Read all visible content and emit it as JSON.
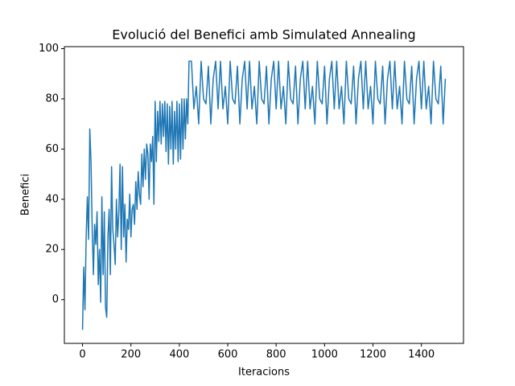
{
  "chart_data": {
    "type": "line",
    "title": "Evolució del Benefici amb Simulated Annealing",
    "x_label": "Iteracions",
    "y_label": "Benefici",
    "color": "#1f77b4",
    "xlim": [
      -75,
      1574
    ],
    "ylim": [
      -17.4,
      100.8
    ],
    "xticks": [
      0,
      200,
      400,
      600,
      800,
      1000,
      1200,
      1400
    ],
    "yticks": [
      0,
      20,
      40,
      60,
      80,
      100
    ],
    "x": [
      0,
      5,
      10,
      15,
      20,
      25,
      30,
      35,
      40,
      45,
      50,
      55,
      60,
      65,
      70,
      75,
      80,
      85,
      90,
      95,
      100,
      105,
      110,
      115,
      120,
      125,
      130,
      135,
      140,
      145,
      150,
      155,
      160,
      165,
      170,
      175,
      180,
      185,
      190,
      195,
      200,
      205,
      210,
      215,
      220,
      225,
      230,
      235,
      240,
      245,
      250,
      255,
      260,
      265,
      270,
      275,
      280,
      285,
      290,
      295,
      300,
      305,
      310,
      315,
      320,
      325,
      330,
      335,
      340,
      345,
      350,
      355,
      360,
      365,
      370,
      375,
      380,
      385,
      390,
      395,
      400,
      405,
      410,
      415,
      420,
      425,
      430,
      435,
      440,
      450,
      460,
      470,
      480,
      490,
      500,
      510,
      520,
      530,
      540,
      550,
      560,
      570,
      580,
      590,
      600,
      610,
      620,
      630,
      640,
      650,
      660,
      670,
      680,
      690,
      700,
      710,
      720,
      730,
      740,
      750,
      760,
      770,
      780,
      790,
      800,
      810,
      820,
      830,
      840,
      850,
      860,
      870,
      880,
      890,
      900,
      910,
      920,
      930,
      940,
      950,
      960,
      970,
      980,
      990,
      1000,
      1010,
      1020,
      1030,
      1040,
      1050,
      1060,
      1070,
      1080,
      1090,
      1100,
      1110,
      1120,
      1130,
      1140,
      1150,
      1160,
      1170,
      1180,
      1190,
      1200,
      1210,
      1220,
      1230,
      1240,
      1250,
      1260,
      1270,
      1280,
      1290,
      1300,
      1310,
      1320,
      1330,
      1340,
      1350,
      1360,
      1370,
      1380,
      1390,
      1400,
      1410,
      1420,
      1430,
      1440,
      1450,
      1460,
      1470,
      1480,
      1490,
      1499
    ],
    "values": [
      -12,
      13,
      -4,
      25,
      41,
      24,
      68,
      55,
      28,
      10,
      30,
      22,
      35,
      6,
      20,
      -1,
      41,
      10,
      35,
      -3,
      -7,
      25,
      36,
      10,
      53,
      28,
      22,
      14,
      40,
      25,
      35,
      54,
      20,
      53,
      25,
      38,
      15,
      32,
      28,
      42,
      25,
      36,
      38,
      30,
      47,
      36,
      51,
      42,
      38,
      58,
      45,
      60,
      48,
      62,
      58,
      40,
      62,
      55,
      65,
      38,
      79,
      55,
      75,
      63,
      79,
      62,
      78,
      65,
      79,
      59,
      78,
      54,
      77,
      60,
      79,
      54,
      75,
      60,
      79,
      55,
      78,
      56,
      80,
      60,
      80,
      64,
      80,
      70,
      95,
      95,
      76,
      85,
      70,
      95,
      80,
      78,
      93,
      70,
      88,
      95,
      76,
      95,
      76,
      85,
      70,
      95,
      80,
      78,
      93,
      70,
      88,
      95,
      76,
      95,
      76,
      85,
      70,
      95,
      80,
      78,
      93,
      70,
      88,
      95,
      76,
      95,
      76,
      85,
      70,
      95,
      80,
      78,
      93,
      70,
      88,
      95,
      76,
      95,
      76,
      85,
      70,
      95,
      80,
      78,
      93,
      70,
      88,
      95,
      76,
      95,
      76,
      85,
      70,
      95,
      80,
      78,
      93,
      70,
      88,
      95,
      76,
      95,
      76,
      85,
      70,
      95,
      80,
      78,
      93,
      70,
      88,
      95,
      76,
      95,
      76,
      85,
      70,
      95,
      80,
      78,
      93,
      70,
      88,
      95,
      76,
      95,
      76,
      85,
      70,
      95,
      80,
      78,
      93,
      70,
      88
    ]
  }
}
